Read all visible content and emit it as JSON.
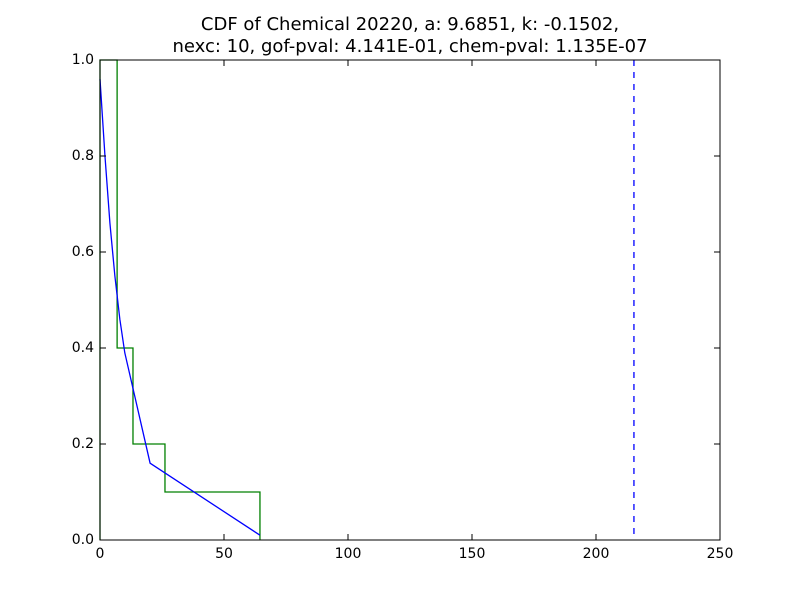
{
  "chart_data": {
    "type": "line",
    "title": [
      "CDF of Chemical 20220, a: 9.6851, k: -0.1502,",
      "nexc: 10, gof-pval: 4.141E-01, chem-pval: 1.135E-07"
    ],
    "xlim": [
      0,
      250
    ],
    "xticks": [
      0,
      50,
      100,
      150,
      200,
      250
    ],
    "ylim": [
      0,
      1
    ],
    "yticks": [
      {
        "value": 0,
        "label": "0.0"
      },
      0.2,
      0.4,
      0.6,
      0.8,
      {
        "value": 1,
        "label": "1.0"
      }
    ],
    "series": [
      {
        "color": "#008000",
        "x": [
          0,
          0,
          6.9,
          6.9,
          13.3,
          13.3,
          26.2,
          26.2,
          64.5,
          64.5
        ],
        "y": [
          0,
          1,
          1,
          0.4,
          0.4,
          0.2,
          0.2,
          0.1,
          0.1,
          0
        ]
      },
      {
        "color": "#0000ff",
        "x": [
          0,
          2,
          4,
          6,
          8,
          10,
          14,
          20.2,
          64.5
        ],
        "y": [
          0.96,
          0.8,
          0.66,
          0.55,
          0.46,
          0.39,
          0.3,
          0.16,
          0.01
        ]
      }
    ],
    "vlines": [
      {
        "x": 215.3,
        "color": "#0000ff",
        "style": "dashed"
      }
    ]
  }
}
